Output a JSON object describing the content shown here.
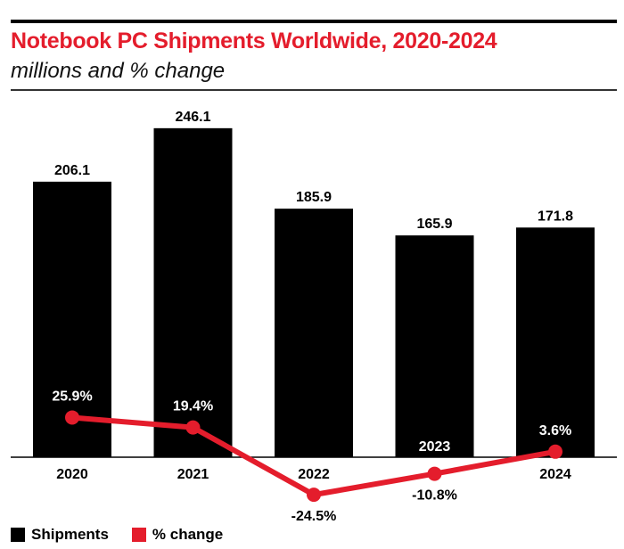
{
  "header": {
    "title": "Notebook PC Shipments Worldwide, 2020-2024",
    "subtitle": "millions and % change"
  },
  "legend": [
    {
      "label": "Shipments",
      "color": "#000000"
    },
    {
      "label": "% change",
      "color": "#e41d2c"
    }
  ],
  "colors": {
    "bars": "#000000",
    "line": "#e41d2c",
    "title": "#e41d2c"
  },
  "chart_data": {
    "type": "bar",
    "categories": [
      "2020",
      "2021",
      "2022",
      "2023",
      "2024"
    ],
    "series": [
      {
        "name": "Shipments",
        "type": "bar",
        "values": [
          206.1,
          246.1,
          185.9,
          165.9,
          171.8
        ],
        "labels": [
          "206.1",
          "246.1",
          "185.9",
          "165.9",
          "171.8"
        ]
      },
      {
        "name": "% change",
        "type": "line",
        "values": [
          25.9,
          19.4,
          -24.5,
          -10.8,
          3.6
        ],
        "labels": [
          "25.9%",
          "19.4%",
          "-24.5%",
          "-10.8%",
          "3.6%"
        ]
      }
    ],
    "title": "Notebook PC Shipments Worldwide, 2020-2024",
    "subtitle": "millions and % change",
    "legend_position": "bottom-left",
    "grid": false
  }
}
